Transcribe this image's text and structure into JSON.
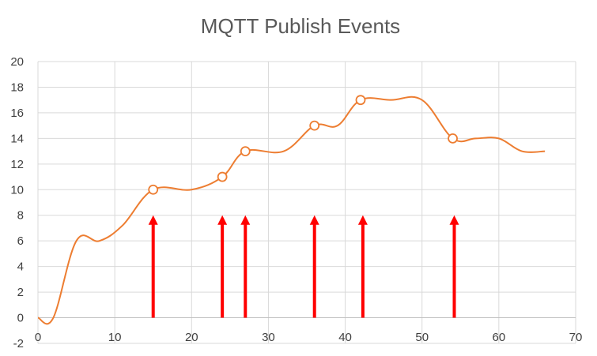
{
  "chart_data": {
    "type": "line",
    "title": "MQTT Publish Events",
    "xlabel": "",
    "ylabel": "",
    "xlim": [
      0,
      70
    ],
    "ylim": [
      -2,
      20
    ],
    "x_ticks": [
      0,
      10,
      20,
      30,
      40,
      50,
      60,
      70
    ],
    "y_ticks": [
      -2,
      0,
      2,
      4,
      6,
      8,
      10,
      12,
      14,
      16,
      18,
      20
    ],
    "grid": true,
    "legend": "none",
    "line_color": "#ed7d31",
    "arrow_color": "#ff0000",
    "series": [
      {
        "points": [
          [
            0,
            0
          ],
          [
            2,
            0
          ],
          [
            5,
            6
          ],
          [
            8,
            6
          ],
          [
            11,
            7.2
          ],
          [
            15,
            10
          ],
          [
            20,
            10
          ],
          [
            24,
            11
          ],
          [
            27,
            13
          ],
          [
            32,
            13
          ],
          [
            36,
            15
          ],
          [
            39,
            15
          ],
          [
            42,
            17
          ],
          [
            46,
            17
          ],
          [
            50,
            17
          ],
          [
            54,
            14
          ],
          [
            57,
            14
          ],
          [
            60,
            14
          ],
          [
            63,
            13
          ],
          [
            66,
            13
          ]
        ],
        "markers": [
          [
            15,
            10
          ],
          [
            24,
            11
          ],
          [
            27,
            13
          ],
          [
            36,
            15
          ],
          [
            42,
            17
          ],
          [
            54,
            14
          ]
        ]
      }
    ],
    "annotations": {
      "arrows": [
        {
          "x": 15,
          "from": 0,
          "to": 8
        },
        {
          "x": 24,
          "from": 0,
          "to": 8
        },
        {
          "x": 27,
          "from": 0,
          "to": 8
        },
        {
          "x": 36,
          "from": 0,
          "to": 8
        },
        {
          "x": 42.3,
          "from": 0,
          "to": 8
        },
        {
          "x": 54.2,
          "from": 0,
          "to": 8
        }
      ]
    }
  }
}
